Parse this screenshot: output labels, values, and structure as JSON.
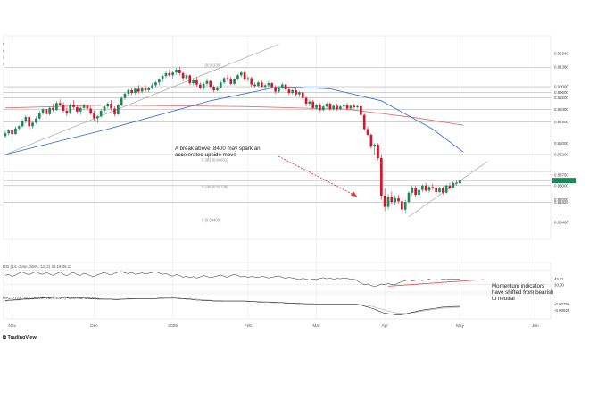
{
  "header": {
    "byline": "davidscutt published on TradingView.com, May 12, 2025 10:17 UTC+10",
    "symbol_line": "U.S. Dollar / Swiss Franc · 1D · FOREX.com  O0.83142  H0.83512  L0.83162  C0.83357  +0.00190 (+0.23%)",
    "sma50_label": "SMA (50, close)",
    "sma50_value": "0.8537",
    "sma200_label": "SMA (200, close)",
    "sma200_value": "0.8727"
  },
  "annotations": {
    "breakout_text": "A break above .8400 may spark an accelerated upside move",
    "momentum_text": "Momentum indicators have shifted from bearish to neutral"
  },
  "indicators": {
    "rsi_label": "RSI (14, close, SMA, 14, 2)  45.19  45.11",
    "rsi_value": "45.11",
    "rsi_level": "30.00",
    "macd_label": "MACD (12, 26, close, 9, EMA, EMA)  -0.00756  -0.00923",
    "macd_value": "-0.00756",
    "macd_signal": "-0.00923"
  },
  "colors": {
    "up": "#1b8a5a",
    "down": "#d3162c",
    "sma50": "#2b6cd4",
    "sma200": "#e36a6a",
    "arrow": "#e23b3b",
    "grid": "#e6e6e6",
    "level": "#888888"
  },
  "brand": "TradingView",
  "chart_data": {
    "type": "candlestick",
    "title": "U.S. Dollar / Swiss Franc · 1D · FOREX.com",
    "x_tick_labels": [
      "Nov",
      "Dec",
      "2025",
      "Feb",
      "Mar",
      "Apr",
      "May",
      "Jun"
    ],
    "x_tick_index": [
      2,
      26,
      49,
      71,
      91,
      111,
      133,
      155
    ],
    "ylim": [
      0.792,
      0.936
    ],
    "ohlc": [
      [
        0.865,
        0.869,
        0.8635,
        0.867
      ],
      [
        0.867,
        0.87,
        0.8655,
        0.869
      ],
      [
        0.869,
        0.8702,
        0.865,
        0.8665
      ],
      [
        0.8665,
        0.872,
        0.866,
        0.8705
      ],
      [
        0.8705,
        0.873,
        0.869,
        0.872
      ],
      [
        0.872,
        0.877,
        0.871,
        0.8755
      ],
      [
        0.8755,
        0.88,
        0.874,
        0.8785
      ],
      [
        0.8785,
        0.879,
        0.87,
        0.872
      ],
      [
        0.872,
        0.876,
        0.8705,
        0.8745
      ],
      [
        0.8745,
        0.879,
        0.8735,
        0.8775
      ],
      [
        0.8775,
        0.883,
        0.8765,
        0.8815
      ],
      [
        0.8815,
        0.885,
        0.88,
        0.884
      ],
      [
        0.884,
        0.8845,
        0.879,
        0.8805
      ],
      [
        0.8805,
        0.886,
        0.8795,
        0.885
      ],
      [
        0.885,
        0.888,
        0.882,
        0.8835
      ],
      [
        0.8835,
        0.89,
        0.883,
        0.8885
      ],
      [
        0.8885,
        0.891,
        0.886,
        0.887
      ],
      [
        0.887,
        0.889,
        0.8815,
        0.883
      ],
      [
        0.883,
        0.885,
        0.879,
        0.881
      ],
      [
        0.881,
        0.888,
        0.8805,
        0.887
      ],
      [
        0.887,
        0.8905,
        0.884,
        0.8855
      ],
      [
        0.8855,
        0.887,
        0.881,
        0.8825
      ],
      [
        0.8825,
        0.886,
        0.88,
        0.885
      ],
      [
        0.885,
        0.888,
        0.8835,
        0.8865
      ],
      [
        0.8865,
        0.888,
        0.883,
        0.8845
      ],
      [
        0.8845,
        0.8862,
        0.88,
        0.8812
      ],
      [
        0.8812,
        0.883,
        0.876,
        0.8775
      ],
      [
        0.8775,
        0.88,
        0.874,
        0.879
      ],
      [
        0.879,
        0.884,
        0.878,
        0.883
      ],
      [
        0.883,
        0.887,
        0.8815,
        0.886
      ],
      [
        0.886,
        0.889,
        0.8845,
        0.888
      ],
      [
        0.888,
        0.8905,
        0.883,
        0.8845
      ],
      [
        0.8845,
        0.886,
        0.879,
        0.8805
      ],
      [
        0.8805,
        0.888,
        0.88,
        0.887
      ],
      [
        0.887,
        0.893,
        0.886,
        0.892
      ],
      [
        0.892,
        0.896,
        0.8905,
        0.895
      ],
      [
        0.895,
        0.8985,
        0.893,
        0.8975
      ],
      [
        0.8975,
        0.8995,
        0.894,
        0.8955
      ],
      [
        0.8955,
        0.899,
        0.8945,
        0.8985
      ],
      [
        0.8985,
        0.901,
        0.895,
        0.8965
      ],
      [
        0.8965,
        0.9,
        0.8955,
        0.899
      ],
      [
        0.899,
        0.901,
        0.896,
        0.8975
      ],
      [
        0.8975,
        0.9,
        0.896,
        0.899
      ],
      [
        0.899,
        0.9025,
        0.898,
        0.901
      ],
      [
        0.901,
        0.904,
        0.8995,
        0.903
      ],
      [
        0.903,
        0.906,
        0.901,
        0.905
      ],
      [
        0.905,
        0.9085,
        0.9035,
        0.9075
      ],
      [
        0.9075,
        0.911,
        0.906,
        0.9095
      ],
      [
        0.9095,
        0.912,
        0.907,
        0.908
      ],
      [
        0.908,
        0.911,
        0.906,
        0.91
      ],
      [
        0.91,
        0.9135,
        0.9085,
        0.912
      ],
      [
        0.912,
        0.914,
        0.908,
        0.9095
      ],
      [
        0.9095,
        0.9105,
        0.904,
        0.906
      ],
      [
        0.906,
        0.909,
        0.9045,
        0.908
      ],
      [
        0.908,
        0.9085,
        0.901,
        0.9025
      ],
      [
        0.9025,
        0.906,
        0.901,
        0.9045
      ],
      [
        0.9045,
        0.9065,
        0.9,
        0.9015
      ],
      [
        0.9015,
        0.903,
        0.898,
        0.899
      ],
      [
        0.899,
        0.903,
        0.8975,
        0.902
      ],
      [
        0.902,
        0.906,
        0.9005,
        0.904
      ],
      [
        0.904,
        0.9045,
        0.8985,
        0.9
      ],
      [
        0.9,
        0.901,
        0.896,
        0.8975
      ],
      [
        0.8975,
        0.9005,
        0.8965,
        0.8995
      ],
      [
        0.8995,
        0.904,
        0.899,
        0.903
      ],
      [
        0.903,
        0.907,
        0.902,
        0.906
      ],
      [
        0.906,
        0.9085,
        0.904,
        0.905
      ],
      [
        0.905,
        0.907,
        0.901,
        0.902
      ],
      [
        0.902,
        0.906,
        0.901,
        0.9055
      ],
      [
        0.9055,
        0.909,
        0.9045,
        0.908
      ],
      [
        0.908,
        0.911,
        0.9065,
        0.91
      ],
      [
        0.91,
        0.9115,
        0.904,
        0.905
      ],
      [
        0.905,
        0.9075,
        0.9035,
        0.906
      ],
      [
        0.906,
        0.907,
        0.9,
        0.9015
      ],
      [
        0.9015,
        0.903,
        0.899,
        0.9005
      ],
      [
        0.9005,
        0.904,
        0.8995,
        0.903
      ],
      [
        0.903,
        0.9045,
        0.899,
        0.9
      ],
      [
        0.9,
        0.902,
        0.898,
        0.901
      ],
      [
        0.901,
        0.904,
        0.8995,
        0.9025
      ],
      [
        0.9025,
        0.903,
        0.8985,
        0.8995
      ],
      [
        0.8995,
        0.901,
        0.895,
        0.8965
      ],
      [
        0.8965,
        0.9,
        0.8955,
        0.899
      ],
      [
        0.899,
        0.903,
        0.898,
        0.9015
      ],
      [
        0.9015,
        0.9025,
        0.897,
        0.898
      ],
      [
        0.898,
        0.8995,
        0.894,
        0.8955
      ],
      [
        0.8955,
        0.8985,
        0.8945,
        0.8975
      ],
      [
        0.8975,
        0.899,
        0.893,
        0.8945
      ],
      [
        0.8945,
        0.897,
        0.8925,
        0.896
      ],
      [
        0.896,
        0.8975,
        0.8905,
        0.892
      ],
      [
        0.892,
        0.8935,
        0.886,
        0.888
      ],
      [
        0.888,
        0.891,
        0.886,
        0.8895
      ],
      [
        0.8895,
        0.8905,
        0.884,
        0.885
      ],
      [
        0.885,
        0.888,
        0.8835,
        0.887
      ],
      [
        0.887,
        0.8885,
        0.8825,
        0.8835
      ],
      [
        0.8835,
        0.887,
        0.8825,
        0.886
      ],
      [
        0.886,
        0.889,
        0.885,
        0.888
      ],
      [
        0.888,
        0.889,
        0.883,
        0.884
      ],
      [
        0.884,
        0.8875,
        0.883,
        0.8865
      ],
      [
        0.8865,
        0.888,
        0.883,
        0.884
      ],
      [
        0.884,
        0.887,
        0.8835,
        0.886
      ],
      [
        0.886,
        0.888,
        0.8845,
        0.887
      ],
      [
        0.887,
        0.8885,
        0.8835,
        0.8845
      ],
      [
        0.8845,
        0.8875,
        0.884,
        0.8865
      ],
      [
        0.8865,
        0.888,
        0.8845,
        0.8855
      ],
      [
        0.8855,
        0.887,
        0.8845,
        0.8862
      ],
      [
        0.8862,
        0.887,
        0.879,
        0.88
      ],
      [
        0.88,
        0.881,
        0.869,
        0.87
      ],
      [
        0.87,
        0.872,
        0.865,
        0.866
      ],
      [
        0.866,
        0.867,
        0.856,
        0.8575
      ],
      [
        0.8575,
        0.86,
        0.852,
        0.859
      ],
      [
        0.859,
        0.86,
        0.848,
        0.8495
      ],
      [
        0.8495,
        0.852,
        0.82,
        0.823
      ],
      [
        0.823,
        0.828,
        0.812,
        0.815
      ],
      [
        0.815,
        0.824,
        0.813,
        0.822
      ],
      [
        0.822,
        0.826,
        0.817,
        0.8185
      ],
      [
        0.8185,
        0.823,
        0.816,
        0.821
      ],
      [
        0.821,
        0.8235,
        0.8175,
        0.819
      ],
      [
        0.819,
        0.8215,
        0.811,
        0.813
      ],
      [
        0.813,
        0.82,
        0.81,
        0.8185
      ],
      [
        0.8185,
        0.826,
        0.8175,
        0.825
      ],
      [
        0.825,
        0.83,
        0.823,
        0.8285
      ],
      [
        0.8285,
        0.83,
        0.822,
        0.8235
      ],
      [
        0.8235,
        0.828,
        0.8225,
        0.827
      ],
      [
        0.827,
        0.831,
        0.8255,
        0.83
      ],
      [
        0.83,
        0.832,
        0.8255,
        0.8265
      ],
      [
        0.8265,
        0.83,
        0.825,
        0.829
      ],
      [
        0.829,
        0.8315,
        0.827,
        0.828
      ],
      [
        0.828,
        0.83,
        0.824,
        0.8255
      ],
      [
        0.8255,
        0.829,
        0.8245,
        0.828
      ],
      [
        0.828,
        0.8295,
        0.8235,
        0.825
      ],
      [
        0.825,
        0.831,
        0.8245,
        0.83
      ],
      [
        0.83,
        0.832,
        0.827,
        0.8285
      ],
      [
        0.8285,
        0.833,
        0.828,
        0.832
      ],
      [
        0.832,
        0.834,
        0.83,
        0.8315
      ],
      [
        0.8315,
        0.8345,
        0.831,
        0.8336
      ]
    ],
    "series": [
      {
        "name": "SMA (50, close)",
        "values_at": [
          [
            0,
            0.852
          ],
          [
            30,
            0.87
          ],
          [
            60,
            0.89
          ],
          [
            80,
            0.9
          ],
          [
            95,
            0.8985
          ],
          [
            110,
            0.89
          ],
          [
            125,
            0.87
          ],
          [
            134,
            0.8537
          ]
        ]
      },
      {
        "name": "SMA (200, close)",
        "values_at": [
          [
            0,
            0.885
          ],
          [
            30,
            0.887
          ],
          [
            70,
            0.886
          ],
          [
            100,
            0.884
          ],
          [
            120,
            0.878
          ],
          [
            134,
            0.8727
          ]
        ]
      }
    ],
    "price_levels": [
      0.9134,
      0.9,
      0.896,
      0.892,
      0.884,
      0.875,
      0.852,
      0.84,
      0.8336,
      0.83,
      0.8182
    ],
    "fib_levels": [
      {
        "label": "1 (0.91338)",
        "value": 0.9134
      },
      {
        "label": "0.382 (0.84631)",
        "value": 0.8463
      },
      {
        "label": "0.236 (0.82738)",
        "value": 0.8274
      },
      {
        "label": "0 (0.80400)",
        "value": 0.804
      }
    ],
    "axis_labels": [
      "0.92340",
      "0.91380",
      "0.90000",
      "0.89600",
      "0.89200",
      "0.88400",
      "0.87500",
      "0.86000",
      "0.85200",
      "0.83750",
      "0.83357",
      "0.83000",
      "0.82000",
      "0.81820",
      "0.80400"
    ],
    "trendlines": [
      {
        "name": "rising-support",
        "from": [
          0,
          0.852
        ],
        "to": [
          80,
          0.93
        ]
      },
      {
        "name": "may-support",
        "from": [
          118,
          0.808
        ],
        "to": [
          141,
          0.847
        ]
      }
    ],
    "rsi": [
      55,
      58,
      52,
      56,
      61,
      64,
      60,
      57,
      62,
      65,
      60,
      58,
      63,
      59,
      55,
      60,
      64,
      58,
      54,
      60,
      63,
      57,
      55,
      61,
      58,
      54,
      52,
      57,
      60,
      63,
      59,
      56,
      61,
      64,
      66,
      62,
      60,
      63,
      58,
      60,
      62,
      59,
      61,
      63,
      65,
      62,
      58,
      60,
      56,
      53,
      57,
      55,
      50,
      53,
      49,
      52,
      48,
      51,
      55,
      52,
      49,
      51,
      54,
      56,
      53,
      50,
      55,
      58,
      55,
      51,
      53,
      50,
      52,
      51,
      49,
      53,
      51,
      48,
      50,
      52,
      54,
      50,
      47,
      50,
      48,
      46,
      44,
      47,
      45,
      43,
      46,
      44,
      47,
      49,
      46,
      48,
      45,
      47,
      46,
      48,
      47,
      45,
      46,
      40,
      34,
      30,
      32,
      28,
      25,
      28,
      32,
      30,
      33,
      31,
      30,
      35,
      38,
      41,
      43,
      40,
      42,
      44,
      41,
      43,
      45,
      42,
      44,
      43,
      45,
      44,
      46,
      45,
      45,
      45
    ],
    "macd": [
      0.004,
      0.005,
      0.005,
      0.006,
      0.006,
      0.007,
      0.008,
      0.008,
      0.008,
      0.009,
      0.009,
      0.01,
      0.01,
      0.01,
      0.011,
      0.011,
      0.011,
      0.011,
      0.01,
      0.01,
      0.01,
      0.01,
      0.009,
      0.009,
      0.009,
      0.008,
      0.008,
      0.007,
      0.007,
      0.007,
      0.007,
      0.007,
      0.006,
      0.006,
      0.007,
      0.007,
      0.008,
      0.008,
      0.008,
      0.008,
      0.008,
      0.008,
      0.008,
      0.008,
      0.008,
      0.009,
      0.009,
      0.009,
      0.009,
      0.009,
      0.009,
      0.008,
      0.008,
      0.007,
      0.007,
      0.006,
      0.005,
      0.005,
      0.004,
      0.004,
      0.004,
      0.003,
      0.003,
      0.003,
      0.003,
      0.003,
      0.003,
      0.003,
      0.003,
      0.003,
      0.003,
      0.002,
      0.002,
      0.002,
      0.001,
      0.001,
      0.001,
      0.001,
      0.0,
      0.0,
      0.0,
      0.0,
      -0.001,
      -0.001,
      -0.001,
      -0.002,
      -0.002,
      -0.002,
      -0.003,
      -0.003,
      -0.003,
      -0.003,
      -0.003,
      -0.003,
      -0.003,
      -0.003,
      -0.003,
      -0.003,
      -0.003,
      -0.003,
      -0.003,
      -0.003,
      -0.003,
      -0.004,
      -0.005,
      -0.007,
      -0.009,
      -0.011,
      -0.013,
      -0.016,
      -0.019,
      -0.021,
      -0.022,
      -0.023,
      -0.024,
      -0.025,
      -0.024,
      -0.023,
      -0.021,
      -0.019,
      -0.018,
      -0.016,
      -0.015,
      -0.014,
      -0.013,
      -0.012,
      -0.011,
      -0.01,
      -0.009,
      -0.009,
      -0.008,
      -0.008,
      -0.0076,
      -0.0076
    ],
    "macd_signal": [
      0.003,
      0.004,
      0.004,
      0.005,
      0.005,
      0.006,
      0.006,
      0.007,
      0.007,
      0.008,
      0.008,
      0.009,
      0.009,
      0.009,
      0.01,
      0.01,
      0.01,
      0.01,
      0.01,
      0.01,
      0.01,
      0.01,
      0.01,
      0.009,
      0.009,
      0.009,
      0.008,
      0.008,
      0.008,
      0.007,
      0.007,
      0.007,
      0.007,
      0.007,
      0.007,
      0.007,
      0.007,
      0.007,
      0.008,
      0.008,
      0.008,
      0.008,
      0.008,
      0.008,
      0.008,
      0.008,
      0.008,
      0.009,
      0.009,
      0.009,
      0.009,
      0.009,
      0.008,
      0.008,
      0.008,
      0.007,
      0.007,
      0.006,
      0.006,
      0.005,
      0.005,
      0.004,
      0.004,
      0.004,
      0.003,
      0.003,
      0.003,
      0.003,
      0.003,
      0.003,
      0.003,
      0.003,
      0.002,
      0.002,
      0.002,
      0.002,
      0.001,
      0.001,
      0.001,
      0.001,
      0.0,
      0.0,
      0.0,
      -0.001,
      -0.001,
      -0.001,
      -0.001,
      -0.002,
      -0.002,
      -0.002,
      -0.002,
      -0.003,
      -0.003,
      -0.003,
      -0.003,
      -0.003,
      -0.003,
      -0.003,
      -0.003,
      -0.003,
      -0.003,
      -0.003,
      -0.003,
      -0.003,
      -0.004,
      -0.005,
      -0.006,
      -0.007,
      -0.009,
      -0.011,
      -0.013,
      -0.015,
      -0.017,
      -0.018,
      -0.02,
      -0.021,
      -0.021,
      -0.021,
      -0.021,
      -0.02,
      -0.019,
      -0.018,
      -0.017,
      -0.016,
      -0.015,
      -0.014,
      -0.013,
      -0.012,
      -0.011,
      -0.011,
      -0.01,
      -0.01,
      -0.0095,
      -0.0092
    ]
  }
}
